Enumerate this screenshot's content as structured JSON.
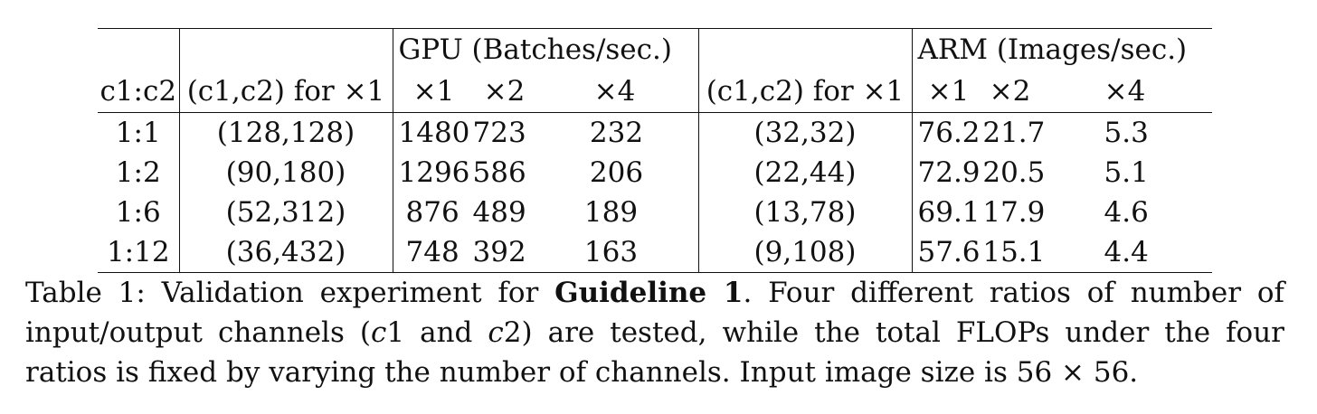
{
  "table": {
    "headers": {
      "gpu_group": "GPU (Batches/sec.)",
      "arm_group": "ARM (Images/sec.)",
      "ratio": "c1:c2",
      "gpu_channels": "(c1,c2) for ×1",
      "arm_channels": "(c1,c2) for ×1",
      "x1": "×1",
      "x2": "×2",
      "x4": "×4"
    },
    "rows": [
      {
        "ratio": "1:1",
        "gpu_channels": "(128,128)",
        "gpu_x1": "1480",
        "gpu_x2": "723",
        "gpu_x4": "232",
        "arm_channels": "(32,32)",
        "arm_x1": "76.2",
        "arm_x2": "21.7",
        "arm_x4": "5.3"
      },
      {
        "ratio": "1:2",
        "gpu_channels": "(90,180)",
        "gpu_x1": "1296",
        "gpu_x2": "586",
        "gpu_x4": "206",
        "arm_channels": "(22,44)",
        "arm_x1": "72.9",
        "arm_x2": "20.5",
        "arm_x4": "5.1"
      },
      {
        "ratio": "1:6",
        "gpu_channels": "(52,312)",
        "gpu_x1": "876",
        "gpu_x2": "489",
        "gpu_x4": "189",
        "arm_channels": "(13,78)",
        "arm_x1": "69.1",
        "arm_x2": "17.9",
        "arm_x4": "4.6"
      },
      {
        "ratio": "1:12",
        "gpu_channels": "(36,432)",
        "gpu_x1": "748",
        "gpu_x2": "392",
        "gpu_x4": "163",
        "arm_channels": "(9,108)",
        "arm_x1": "57.6",
        "arm_x2": "15.1",
        "arm_x4": "4.4"
      }
    ]
  },
  "caption": {
    "prefix": "Table 1: Validation experiment for ",
    "bold": "Guideline 1",
    "part1": ". Four different ratios of number of input/output channels (",
    "c1": "c",
    "c1_num": "1",
    "and": " and ",
    "c2": "c",
    "c2_num": "2",
    "part2": ") are tested, while the total FLOPs under the four ratios is fixed by varying the number of channels. Input image size is 56 × 56."
  }
}
